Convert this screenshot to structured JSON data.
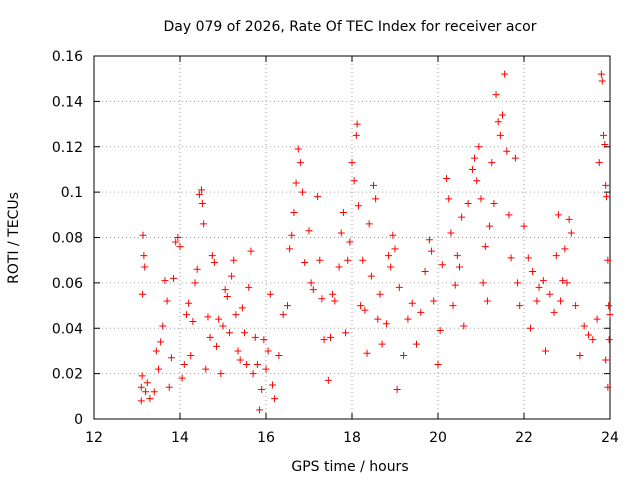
{
  "chart_data": {
    "type": "scatter",
    "title": "Day 079 of 2026, Rate Of TEC Index for receiver acor",
    "xlabel": "GPS time / hours",
    "ylabel": "ROTI / TECUs",
    "xlim": [
      12,
      24
    ],
    "ylim": [
      0,
      0.16
    ],
    "xticks": [
      12,
      14,
      16,
      18,
      20,
      22,
      24
    ],
    "yticks": [
      0,
      0.02,
      0.04,
      0.06,
      0.08,
      0.1,
      0.12,
      0.14,
      0.16
    ],
    "ytick_labels": [
      "0",
      "0.02",
      "0.04",
      "0.06",
      "0.08",
      "0.1",
      "0.12",
      "0.14",
      "0.16"
    ],
    "xtick_labels": [
      "12",
      "14",
      "16",
      "18",
      "20",
      "22",
      "24"
    ],
    "grid": true,
    "marker": "plus",
    "color": "#ff0000",
    "series": [
      {
        "points": [
          [
            13.1,
            0.008
          ],
          [
            13.1,
            0.014
          ],
          [
            13.12,
            0.019
          ],
          [
            13.13,
            0.055
          ],
          [
            13.14,
            0.081
          ],
          [
            13.16,
            0.072
          ],
          [
            13.18,
            0.067
          ],
          [
            13.2,
            0.012
          ],
          [
            13.24,
            0.016
          ],
          [
            13.3,
            0.009
          ],
          [
            13.4,
            0.012
          ],
          [
            13.45,
            0.03
          ],
          [
            13.5,
            0.022
          ],
          [
            13.55,
            0.034
          ],
          [
            13.6,
            0.041
          ],
          [
            13.65,
            0.061
          ],
          [
            13.7,
            0.052
          ],
          [
            13.75,
            0.014
          ],
          [
            13.8,
            0.027
          ],
          [
            13.85,
            0.062
          ],
          [
            13.9,
            0.078
          ],
          [
            13.95,
            0.08
          ],
          [
            14.0,
            0.076
          ],
          [
            14.05,
            0.018
          ],
          [
            14.1,
            0.024
          ],
          [
            14.15,
            0.046
          ],
          [
            14.2,
            0.051
          ],
          [
            14.25,
            0.028
          ],
          [
            14.3,
            0.043
          ],
          [
            14.35,
            0.06
          ],
          [
            14.4,
            0.066
          ],
          [
            14.45,
            0.099
          ],
          [
            14.5,
            0.101
          ],
          [
            14.52,
            0.095
          ],
          [
            14.55,
            0.086
          ],
          [
            14.6,
            0.022
          ],
          [
            14.65,
            0.045
          ],
          [
            14.7,
            0.036
          ],
          [
            14.75,
            0.072
          ],
          [
            14.8,
            0.069
          ],
          [
            14.85,
            0.032
          ],
          [
            14.9,
            0.044
          ],
          [
            14.95,
            0.02
          ],
          [
            15.0,
            0.041
          ],
          [
            15.05,
            0.057
          ],
          [
            15.1,
            0.054
          ],
          [
            15.15,
            0.038
          ],
          [
            15.2,
            0.063
          ],
          [
            15.25,
            0.07
          ],
          [
            15.3,
            0.046
          ],
          [
            15.35,
            0.03
          ],
          [
            15.4,
            0.026
          ],
          [
            15.45,
            0.049
          ],
          [
            15.5,
            0.038
          ],
          [
            15.55,
            0.024
          ],
          [
            15.6,
            0.058
          ],
          [
            15.65,
            0.074
          ],
          [
            15.7,
            0.02
          ],
          [
            15.75,
            0.036
          ],
          [
            15.8,
            0.024
          ],
          [
            15.85,
            0.004
          ],
          [
            15.9,
            0.013
          ],
          [
            15.95,
            0.035
          ],
          [
            16.0,
            0.022
          ],
          [
            16.05,
            0.03
          ],
          [
            16.1,
            0.055
          ],
          [
            16.15,
            0.015
          ],
          [
            16.2,
            0.009
          ],
          [
            16.3,
            0.028
          ],
          [
            16.4,
            0.046
          ],
          [
            16.5,
            0.05
          ],
          [
            16.55,
            0.075
          ],
          [
            16.6,
            0.081
          ],
          [
            16.65,
            0.091
          ],
          [
            16.7,
            0.104
          ],
          [
            16.75,
            0.119
          ],
          [
            16.8,
            0.113
          ],
          [
            16.85,
            0.1
          ],
          [
            16.9,
            0.069
          ],
          [
            17.0,
            0.083
          ],
          [
            17.05,
            0.06
          ],
          [
            17.1,
            0.057
          ],
          [
            17.2,
            0.098
          ],
          [
            17.25,
            0.07
          ],
          [
            17.3,
            0.053
          ],
          [
            17.35,
            0.035
          ],
          [
            17.45,
            0.017
          ],
          [
            17.5,
            0.036
          ],
          [
            17.55,
            0.055
          ],
          [
            17.6,
            0.052
          ],
          [
            17.7,
            0.067
          ],
          [
            17.75,
            0.082
          ],
          [
            17.8,
            0.091
          ],
          [
            17.85,
            0.038
          ],
          [
            17.9,
            0.07
          ],
          [
            17.95,
            0.078
          ],
          [
            18.0,
            0.113
          ],
          [
            18.05,
            0.105
          ],
          [
            18.1,
            0.125
          ],
          [
            18.12,
            0.13
          ],
          [
            18.15,
            0.094
          ],
          [
            18.2,
            0.05
          ],
          [
            18.25,
            0.07
          ],
          [
            18.3,
            0.048
          ],
          [
            18.35,
            0.029
          ],
          [
            18.4,
            0.086
          ],
          [
            18.45,
            0.063
          ],
          [
            18.5,
            0.103
          ],
          [
            18.55,
            0.097
          ],
          [
            18.6,
            0.044
          ],
          [
            18.65,
            0.055
          ],
          [
            18.7,
            0.033
          ],
          [
            18.8,
            0.042
          ],
          [
            18.85,
            0.072
          ],
          [
            18.9,
            0.067
          ],
          [
            18.95,
            0.081
          ],
          [
            19.0,
            0.075
          ],
          [
            19.05,
            0.013
          ],
          [
            19.1,
            0.058
          ],
          [
            19.2,
            0.028
          ],
          [
            19.3,
            0.044
          ],
          [
            19.4,
            0.051
          ],
          [
            19.5,
            0.033
          ],
          [
            19.6,
            0.047
          ],
          [
            19.7,
            0.065
          ],
          [
            19.8,
            0.079
          ],
          [
            19.85,
            0.074
          ],
          [
            19.9,
            0.052
          ],
          [
            20.0,
            0.024
          ],
          [
            20.05,
            0.039
          ],
          [
            20.1,
            0.068
          ],
          [
            20.2,
            0.106
          ],
          [
            20.25,
            0.097
          ],
          [
            20.3,
            0.082
          ],
          [
            20.35,
            0.05
          ],
          [
            20.4,
            0.059
          ],
          [
            20.45,
            0.072
          ],
          [
            20.5,
            0.067
          ],
          [
            20.55,
            0.089
          ],
          [
            20.6,
            0.041
          ],
          [
            20.7,
            0.095
          ],
          [
            20.8,
            0.11
          ],
          [
            20.85,
            0.115
          ],
          [
            20.9,
            0.105
          ],
          [
            20.95,
            0.12
          ],
          [
            21.0,
            0.097
          ],
          [
            21.05,
            0.06
          ],
          [
            21.1,
            0.076
          ],
          [
            21.15,
            0.052
          ],
          [
            21.2,
            0.085
          ],
          [
            21.25,
            0.113
          ],
          [
            21.3,
            0.095
          ],
          [
            21.35,
            0.143
          ],
          [
            21.4,
            0.131
          ],
          [
            21.45,
            0.125
          ],
          [
            21.5,
            0.134
          ],
          [
            21.55,
            0.152
          ],
          [
            21.6,
            0.118
          ],
          [
            21.65,
            0.09
          ],
          [
            21.7,
            0.071
          ],
          [
            21.8,
            0.115
          ],
          [
            21.85,
            0.06
          ],
          [
            21.9,
            0.05
          ],
          [
            22.0,
            0.085
          ],
          [
            22.1,
            0.071
          ],
          [
            22.15,
            0.04
          ],
          [
            22.2,
            0.065
          ],
          [
            22.3,
            0.052
          ],
          [
            22.35,
            0.058
          ],
          [
            22.45,
            0.061
          ],
          [
            22.5,
            0.03
          ],
          [
            22.6,
            0.055
          ],
          [
            22.7,
            0.047
          ],
          [
            22.75,
            0.072
          ],
          [
            22.8,
            0.09
          ],
          [
            22.85,
            0.052
          ],
          [
            22.9,
            0.061
          ],
          [
            22.95,
            0.075
          ],
          [
            23.0,
            0.06
          ],
          [
            23.05,
            0.088
          ],
          [
            23.1,
            0.082
          ],
          [
            23.2,
            0.05
          ],
          [
            23.3,
            0.028
          ],
          [
            23.4,
            0.041
          ],
          [
            23.5,
            0.037
          ],
          [
            23.6,
            0.035
          ],
          [
            23.7,
            0.044
          ],
          [
            23.75,
            0.113
          ],
          [
            23.8,
            0.152
          ],
          [
            23.82,
            0.149
          ],
          [
            23.85,
            0.125
          ],
          [
            23.88,
            0.121
          ],
          [
            23.9,
            0.103
          ],
          [
            23.92,
            0.098
          ],
          [
            23.95,
            0.07
          ],
          [
            23.97,
            0.05
          ],
          [
            24.0,
            0.046
          ],
          [
            23.98,
            0.035
          ],
          [
            23.9,
            0.026
          ],
          [
            23.95,
            0.014
          ]
        ]
      }
    ]
  }
}
